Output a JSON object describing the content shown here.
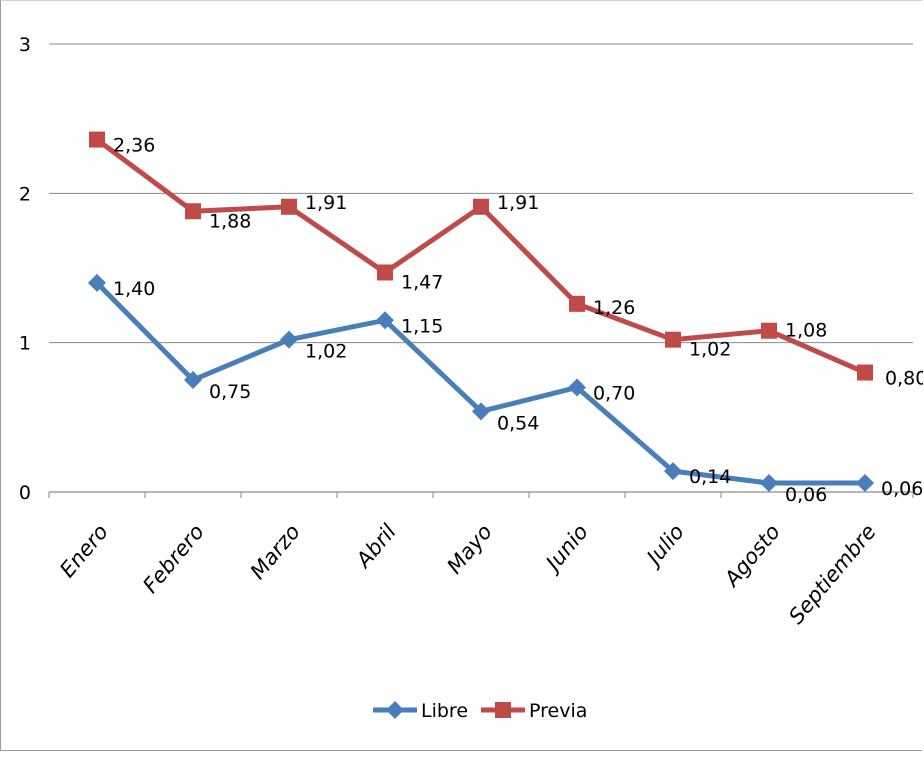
{
  "chart_data": {
    "type": "line",
    "categories": [
      "Enero",
      "Febrero",
      "Marzo",
      "Abril",
      "Mayo",
      "Junio",
      "Julio",
      "Agosto",
      "Septiembre"
    ],
    "ylim": [
      0,
      3
    ],
    "yticks": [
      "0",
      "1",
      "2",
      "3"
    ],
    "grid": true,
    "legend_position": "bottom",
    "series": [
      {
        "name": "Libre",
        "color": "#4a7ebb",
        "marker": "diamond",
        "values": [
          1.4,
          0.75,
          1.02,
          1.15,
          0.54,
          0.7,
          0.14,
          0.06,
          0.06
        ],
        "labels": [
          "1,40",
          "0,75",
          "1,02",
          "1,15",
          "0,54",
          "0,70",
          "0,14",
          "0,06",
          "0,06"
        ]
      },
      {
        "name": "Previa",
        "color": "#be4b48",
        "marker": "square",
        "values": [
          2.36,
          1.88,
          1.91,
          1.47,
          1.91,
          1.26,
          1.02,
          1.08,
          0.8
        ],
        "labels": [
          "2,36",
          "1,88",
          "1,91",
          "1,47",
          "1,91",
          "1,26",
          "1,02",
          "1,08",
          "0,80"
        ]
      }
    ]
  }
}
